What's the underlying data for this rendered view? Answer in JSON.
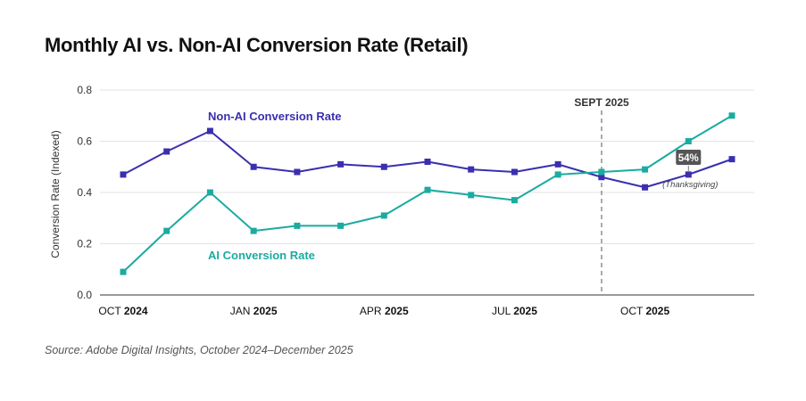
{
  "title": "Monthly AI vs. Non-AI Conversion Rate (Retail)",
  "source": "Source: Adobe Digital Insights, October 2024–December 2025",
  "chart_data": {
    "type": "line",
    "ylabel": "Conversion Rate (Indexed)",
    "ylim": [
      0,
      0.8
    ],
    "yticks": [
      "0.0",
      "0.2",
      "0.4",
      "0.6",
      "0.8"
    ],
    "x": [
      "Oct 2024",
      "Nov 2024",
      "Dec 2024",
      "Jan 2025",
      "Feb 2025",
      "Mar 2025",
      "Apr 2025",
      "May 2025",
      "Jun 2025",
      "Jul 2025",
      "Aug 2025",
      "Sep 2025",
      "Oct 2025",
      "Nov 2025",
      "Dec 2025"
    ],
    "xtick_labels": [
      {
        "index": 0,
        "month": "OCT",
        "year": "2024"
      },
      {
        "index": 3,
        "month": "JAN",
        "year": "2025"
      },
      {
        "index": 6,
        "month": "APR",
        "year": "2025"
      },
      {
        "index": 9,
        "month": "JUL",
        "year": "2025"
      },
      {
        "index": 12,
        "month": "OCT",
        "year": "2025"
      }
    ],
    "grid": true,
    "series": [
      {
        "name": "Non-AI Conversion Rate",
        "color": "#3a2fb0",
        "values": [
          0.47,
          0.56,
          0.64,
          0.5,
          0.48,
          0.51,
          0.5,
          0.52,
          0.49,
          0.48,
          0.51,
          0.46,
          0.42,
          0.47,
          0.53
        ]
      },
      {
        "name": "AI Conversion Rate",
        "color": "#1aaba1",
        "values": [
          0.09,
          0.25,
          0.4,
          0.25,
          0.27,
          0.27,
          0.31,
          0.41,
          0.39,
          0.37,
          0.47,
          0.48,
          0.49,
          0.6,
          0.7
        ]
      }
    ],
    "annotations": {
      "vline_label": "SEPT 2025",
      "badge": "54%",
      "badge_note": "(Thanksgiving)"
    }
  }
}
